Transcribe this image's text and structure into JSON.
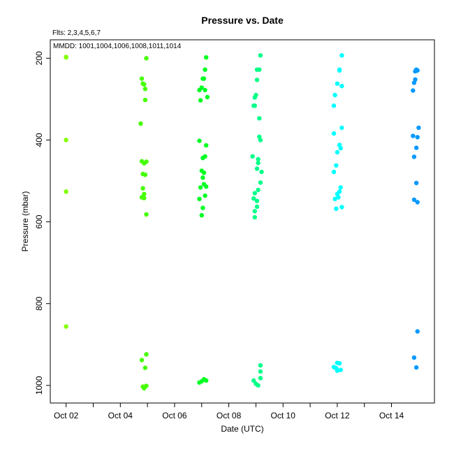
{
  "chart_data": {
    "type": "scatter",
    "title": "Pressure  vs. Date",
    "annotation_fits": "Flts: 2,3,4,5,6,7",
    "annotation_mmdd": "MMDD: 1001,1004,1006,1008,1011,1014",
    "xlabel": "Date (UTC)",
    "ylabel": "Pressure (mbar)",
    "xlim": [
      "2023-10-01T10:00",
      "2023-10-15T14:00"
    ],
    "ylim": [
      1043,
      155
    ],
    "y_inverted": true,
    "x_tick_labels": [
      "Oct 02",
      "Oct 04",
      "Oct 06",
      "Oct 08",
      "Oct 10",
      "Oct 12",
      "Oct 14"
    ],
    "x_tick_dates": [
      "2023-10-02",
      "2023-10-04",
      "2023-10-06",
      "2023-10-08",
      "2023-10-10",
      "2023-10-12",
      "2023-10-14"
    ],
    "x_minor_tick_dates": [
      "2023-10-03",
      "2023-10-05",
      "2023-10-07",
      "2023-10-09",
      "2023-10-11",
      "2023-10-13"
    ],
    "y_ticks": [
      200,
      400,
      600,
      800,
      1000
    ],
    "grid": false,
    "series": [
      {
        "color": "#80ff00",
        "points": [
          {
            "x": "2023-10-02T00:00",
            "y": 197
          },
          {
            "x": "2023-10-02T00:00",
            "y": 198
          },
          {
            "x": "2023-10-02T00:00",
            "y": 400
          },
          {
            "x": "2023-10-02T00:00",
            "y": 526
          },
          {
            "x": "2023-10-02T00:00",
            "y": 856
          }
        ]
      },
      {
        "color": "#44ff00",
        "points": [
          {
            "x": "2023-10-04T18:00",
            "y": 360
          },
          {
            "x": "2023-10-04T19:00",
            "y": 250
          },
          {
            "x": "2023-10-04T20:00",
            "y": 262
          },
          {
            "x": "2023-10-04T21:00",
            "y": 264
          },
          {
            "x": "2023-10-04T22:00",
            "y": 275
          },
          {
            "x": "2023-10-04T22:00",
            "y": 302
          },
          {
            "x": "2023-10-04T23:00",
            "y": 200
          },
          {
            "x": "2023-10-04T19:00",
            "y": 452
          },
          {
            "x": "2023-10-04T21:00",
            "y": 457
          },
          {
            "x": "2023-10-04T23:00",
            "y": 453
          },
          {
            "x": "2023-10-04T20:00",
            "y": 483
          },
          {
            "x": "2023-10-04T22:00",
            "y": 485
          },
          {
            "x": "2023-10-04T20:00",
            "y": 518
          },
          {
            "x": "2023-10-04T21:00",
            "y": 532
          },
          {
            "x": "2023-10-04T19:00",
            "y": 540
          },
          {
            "x": "2023-10-04T21:00",
            "y": 542
          },
          {
            "x": "2023-10-04T23:00",
            "y": 582
          },
          {
            "x": "2023-10-04T19:00",
            "y": 938
          },
          {
            "x": "2023-10-04T23:00",
            "y": 924
          },
          {
            "x": "2023-10-04T22:00",
            "y": 957
          },
          {
            "x": "2023-10-04T20:00",
            "y": 1003
          },
          {
            "x": "2023-10-04T21:00",
            "y": 1007
          },
          {
            "x": "2023-10-04T23:00",
            "y": 1001
          }
        ]
      },
      {
        "color": "#00ff22",
        "points": [
          {
            "x": "2023-10-07T04:00",
            "y": 198
          },
          {
            "x": "2023-10-07T03:00",
            "y": 228
          },
          {
            "x": "2023-10-07T01:00",
            "y": 250
          },
          {
            "x": "2023-10-07T02:00",
            "y": 250
          },
          {
            "x": "2023-10-06T22:00",
            "y": 278
          },
          {
            "x": "2023-10-07T00:00",
            "y": 272
          },
          {
            "x": "2023-10-07T03:00",
            "y": 278
          },
          {
            "x": "2023-10-07T05:00",
            "y": 295
          },
          {
            "x": "2023-10-06T23:00",
            "y": 303
          },
          {
            "x": "2023-10-06T22:00",
            "y": 402
          },
          {
            "x": "2023-10-07T04:00",
            "y": 413
          },
          {
            "x": "2023-10-07T01:00",
            "y": 444
          },
          {
            "x": "2023-10-07T03:00",
            "y": 440
          },
          {
            "x": "2023-10-07T00:00",
            "y": 475
          },
          {
            "x": "2023-10-07T02:00",
            "y": 480
          },
          {
            "x": "2023-10-07T01:00",
            "y": 492
          },
          {
            "x": "2023-10-07T02:00",
            "y": 508
          },
          {
            "x": "2023-10-07T04:00",
            "y": 514
          },
          {
            "x": "2023-10-06T23:00",
            "y": 516
          },
          {
            "x": "2023-10-07T03:00",
            "y": 536
          },
          {
            "x": "2023-10-06T22:00",
            "y": 544
          },
          {
            "x": "2023-10-07T01:00",
            "y": 566
          },
          {
            "x": "2023-10-07T00:00",
            "y": 584
          },
          {
            "x": "2023-10-06T22:00",
            "y": 993
          },
          {
            "x": "2023-10-07T00:00",
            "y": 990
          },
          {
            "x": "2023-10-07T02:00",
            "y": 985
          },
          {
            "x": "2023-10-07T04:00",
            "y": 988
          }
        ]
      },
      {
        "color": "#00ff88",
        "points": [
          {
            "x": "2023-10-09T04:00",
            "y": 193
          },
          {
            "x": "2023-10-09T01:00",
            "y": 228
          },
          {
            "x": "2023-10-09T03:00",
            "y": 228
          },
          {
            "x": "2023-10-09T01:00",
            "y": 253
          },
          {
            "x": "2023-10-09T00:00",
            "y": 290
          },
          {
            "x": "2023-10-08T23:00",
            "y": 296
          },
          {
            "x": "2023-10-08T22:00",
            "y": 316
          },
          {
            "x": "2023-10-08T23:00",
            "y": 316
          },
          {
            "x": "2023-10-09T03:00",
            "y": 347
          },
          {
            "x": "2023-10-09T03:00",
            "y": 392
          },
          {
            "x": "2023-10-09T04:00",
            "y": 400
          },
          {
            "x": "2023-10-08T21:00",
            "y": 440
          },
          {
            "x": "2023-10-09T02:00",
            "y": 447
          },
          {
            "x": "2023-10-09T02:00",
            "y": 456
          },
          {
            "x": "2023-10-09T01:00",
            "y": 470
          },
          {
            "x": "2023-10-09T05:00",
            "y": 478
          },
          {
            "x": "2023-10-09T04:00",
            "y": 504
          },
          {
            "x": "2023-10-09T02:00",
            "y": 522
          },
          {
            "x": "2023-10-08T23:00",
            "y": 530
          },
          {
            "x": "2023-10-08T22:00",
            "y": 543
          },
          {
            "x": "2023-10-09T01:00",
            "y": 549
          },
          {
            "x": "2023-10-09T01:00",
            "y": 563
          },
          {
            "x": "2023-10-08T23:00",
            "y": 574
          },
          {
            "x": "2023-10-08T23:00",
            "y": 589
          },
          {
            "x": "2023-10-09T04:00",
            "y": 951
          },
          {
            "x": "2023-10-09T04:00",
            "y": 966
          },
          {
            "x": "2023-10-09T04:00",
            "y": 982
          },
          {
            "x": "2023-10-08T22:00",
            "y": 988
          },
          {
            "x": "2023-10-09T00:00",
            "y": 996
          },
          {
            "x": "2023-10-09T02:00",
            "y": 1000
          }
        ]
      },
      {
        "color": "#00ffff",
        "points": [
          {
            "x": "2023-10-12T04:00",
            "y": 193
          },
          {
            "x": "2023-10-12T02:00",
            "y": 228
          },
          {
            "x": "2023-10-12T02:00",
            "y": 230
          },
          {
            "x": "2023-10-12T00:00",
            "y": 262
          },
          {
            "x": "2023-10-12T04:00",
            "y": 268
          },
          {
            "x": "2023-10-11T22:00",
            "y": 290
          },
          {
            "x": "2023-10-11T21:00",
            "y": 316
          },
          {
            "x": "2023-10-12T04:00",
            "y": 370
          },
          {
            "x": "2023-10-11T21:00",
            "y": 384
          },
          {
            "x": "2023-10-12T00:00",
            "y": 430
          },
          {
            "x": "2023-10-12T02:00",
            "y": 412
          },
          {
            "x": "2023-10-12T03:00",
            "y": 420
          },
          {
            "x": "2023-10-11T23:00",
            "y": 462
          },
          {
            "x": "2023-10-11T21:00",
            "y": 478
          },
          {
            "x": "2023-10-12T03:00",
            "y": 516
          },
          {
            "x": "2023-10-12T02:00",
            "y": 526
          },
          {
            "x": "2023-10-12T00:00",
            "y": 532
          },
          {
            "x": "2023-10-11T22:00",
            "y": 544
          },
          {
            "x": "2023-10-12T01:00",
            "y": 540
          },
          {
            "x": "2023-10-12T04:00",
            "y": 564
          },
          {
            "x": "2023-10-11T23:00",
            "y": 568
          },
          {
            "x": "2023-10-12T00:00",
            "y": 945
          },
          {
            "x": "2023-10-12T02:00",
            "y": 946
          },
          {
            "x": "2023-10-11T21:00",
            "y": 955
          },
          {
            "x": "2023-10-11T23:00",
            "y": 958
          },
          {
            "x": "2023-10-12T00:00",
            "y": 964
          },
          {
            "x": "2023-10-12T03:00",
            "y": 962
          }
        ]
      },
      {
        "color": "#0099ff",
        "points": [
          {
            "x": "2023-10-14T22:00",
            "y": 228
          },
          {
            "x": "2023-10-14T21:00",
            "y": 232
          },
          {
            "x": "2023-10-14T23:00",
            "y": 230
          },
          {
            "x": "2023-10-14T21:00",
            "y": 252
          },
          {
            "x": "2023-10-14T20:00",
            "y": 260
          },
          {
            "x": "2023-10-14T19:00",
            "y": 279
          },
          {
            "x": "2023-10-15T00:00",
            "y": 370
          },
          {
            "x": "2023-10-14T19:00",
            "y": 390
          },
          {
            "x": "2023-10-14T23:00",
            "y": 393
          },
          {
            "x": "2023-10-14T22:00",
            "y": 419
          },
          {
            "x": "2023-10-14T20:00",
            "y": 441
          },
          {
            "x": "2023-10-14T22:00",
            "y": 505
          },
          {
            "x": "2023-10-14T20:00",
            "y": 546
          },
          {
            "x": "2023-10-14T23:00",
            "y": 552
          },
          {
            "x": "2023-10-14T23:00",
            "y": 868
          },
          {
            "x": "2023-10-14T20:00",
            "y": 932
          },
          {
            "x": "2023-10-14T22:00",
            "y": 956
          }
        ]
      }
    ]
  }
}
